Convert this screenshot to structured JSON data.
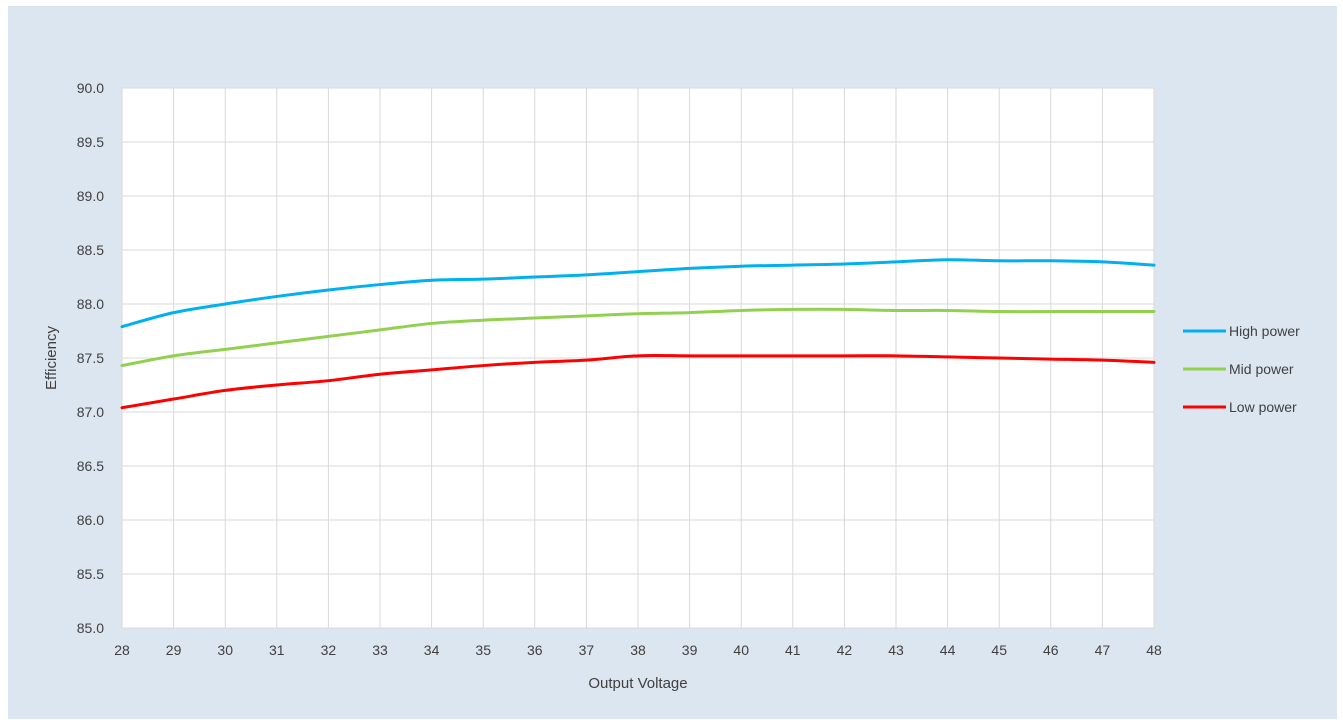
{
  "chart_data": {
    "type": "line",
    "title": "",
    "xlabel": "Output Voltage",
    "ylabel": "Efficiency",
    "xlim": [
      28,
      48
    ],
    "ylim": [
      85.0,
      90.0
    ],
    "x": [
      28,
      29,
      30,
      31,
      32,
      33,
      34,
      35,
      36,
      37,
      38,
      39,
      40,
      41,
      42,
      43,
      44,
      45,
      46,
      47,
      48
    ],
    "x_ticks": [
      "28",
      "29",
      "30",
      "31",
      "32",
      "33",
      "34",
      "35",
      "36",
      "37",
      "38",
      "39",
      "40",
      "41",
      "42",
      "43",
      "44",
      "45",
      "46",
      "47",
      "48"
    ],
    "y_ticks": [
      "85.0",
      "85.5",
      "86.0",
      "86.5",
      "87.0",
      "87.5",
      "88.0",
      "88.5",
      "89.0",
      "89.5",
      "90.0"
    ],
    "grid": true,
    "legend_position": "right",
    "series": [
      {
        "name": "High power",
        "color": "#00b0f0",
        "values": [
          87.79,
          87.92,
          88.0,
          88.07,
          88.13,
          88.18,
          88.22,
          88.23,
          88.25,
          88.27,
          88.3,
          88.33,
          88.35,
          88.36,
          88.37,
          88.39,
          88.41,
          88.4,
          88.4,
          88.39,
          88.36
        ]
      },
      {
        "name": "Mid power",
        "color": "#92d050",
        "values": [
          87.43,
          87.52,
          87.58,
          87.64,
          87.7,
          87.76,
          87.82,
          87.85,
          87.87,
          87.89,
          87.91,
          87.92,
          87.94,
          87.95,
          87.95,
          87.94,
          87.94,
          87.93,
          87.93,
          87.93,
          87.93
        ]
      },
      {
        "name": "Low power",
        "color": "#ff0000",
        "values": [
          87.04,
          87.12,
          87.2,
          87.25,
          87.29,
          87.35,
          87.39,
          87.43,
          87.46,
          87.48,
          87.52,
          87.52,
          87.52,
          87.52,
          87.52,
          87.52,
          87.51,
          87.5,
          87.49,
          87.48,
          87.46
        ]
      }
    ]
  }
}
